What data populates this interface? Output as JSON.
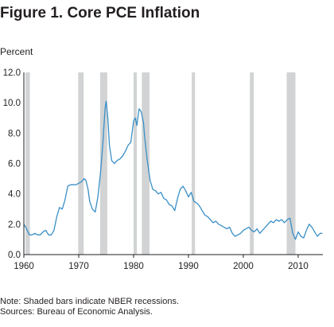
{
  "title": "Figure 1. Core PCE Inflation",
  "y_unit_label": "Percent",
  "notes": [
    "Note: Shaded bars indicate NBER recessions.",
    "Sources: Bureau of Economic Analysis."
  ],
  "colors": {
    "line": "#3a8fc7",
    "recession": "#d1d3d4",
    "axis": "#231f20",
    "text": "#231f20"
  },
  "chart_data": {
    "type": "line",
    "title": "Figure 1. Core PCE Inflation",
    "ylabel": "Percent",
    "xlabel": "",
    "xlim": [
      1960,
      2014.5
    ],
    "ylim": [
      0,
      12
    ],
    "x_ticks": [
      "1960",
      "1970",
      "1980",
      "1990",
      "2000",
      "2010"
    ],
    "y_ticks": [
      "0.0",
      "2.0",
      "4.0",
      "6.0",
      "8.0",
      "10.0",
      "12.0"
    ],
    "grid": false,
    "recessions": [
      [
        1960.3,
        1961.1
      ],
      [
        1969.9,
        1970.9
      ],
      [
        1973.9,
        1975.2
      ],
      [
        1980.0,
        1980.6
      ],
      [
        1981.5,
        1982.9
      ],
      [
        1990.6,
        1991.2
      ],
      [
        2001.2,
        2001.9
      ],
      [
        2007.9,
        2009.5
      ]
    ],
    "series": [
      {
        "name": "",
        "x": [
          1960.0,
          1960.5,
          1961.0,
          1961.5,
          1962.0,
          1962.5,
          1963.0,
          1963.5,
          1964.0,
          1964.5,
          1965.0,
          1965.5,
          1966.0,
          1966.5,
          1967.0,
          1967.5,
          1968.0,
          1968.5,
          1969.0,
          1969.5,
          1970.0,
          1970.5,
          1971.0,
          1971.3,
          1971.7,
          1972.0,
          1972.5,
          1973.0,
          1973.5,
          1974.0,
          1974.4,
          1974.8,
          1975.0,
          1975.3,
          1975.6,
          1976.0,
          1976.5,
          1977.0,
          1977.5,
          1978.0,
          1978.5,
          1979.0,
          1979.5,
          1980.0,
          1980.3,
          1980.6,
          1981.0,
          1981.4,
          1981.8,
          1982.0,
          1982.5,
          1983.0,
          1983.5,
          1984.0,
          1984.5,
          1985.0,
          1985.5,
          1986.0,
          1986.5,
          1987.0,
          1987.5,
          1988.0,
          1988.5,
          1989.0,
          1989.5,
          1990.0,
          1990.5,
          1991.0,
          1991.5,
          1992.0,
          1992.5,
          1993.0,
          1993.5,
          1994.0,
          1994.5,
          1995.0,
          1995.5,
          1996.0,
          1996.5,
          1997.0,
          1997.5,
          1998.0,
          1998.5,
          1999.0,
          1999.5,
          2000.0,
          2000.5,
          2001.0,
          2001.5,
          2002.0,
          2002.5,
          2003.0,
          2003.5,
          2004.0,
          2004.5,
          2005.0,
          2005.5,
          2006.0,
          2006.5,
          2007.0,
          2007.5,
          2008.0,
          2008.5,
          2009.0,
          2009.5,
          2010.0,
          2010.5,
          2011.0,
          2011.5,
          2012.0,
          2012.5,
          2013.0,
          2013.5,
          2014.0,
          2014.4
        ],
        "y": [
          2.0,
          1.7,
          1.3,
          1.3,
          1.4,
          1.3,
          1.3,
          1.5,
          1.6,
          1.3,
          1.3,
          1.6,
          2.5,
          3.1,
          3.0,
          3.6,
          4.5,
          4.6,
          4.6,
          4.6,
          4.7,
          4.8,
          5.0,
          4.9,
          4.3,
          3.5,
          3.0,
          2.8,
          3.8,
          5.5,
          7.3,
          9.6,
          10.1,
          9.0,
          7.2,
          6.2,
          6.0,
          6.2,
          6.3,
          6.5,
          6.8,
          7.2,
          7.4,
          8.8,
          9.0,
          8.5,
          9.6,
          9.4,
          8.7,
          7.8,
          6.2,
          4.9,
          4.3,
          4.2,
          4.0,
          4.1,
          3.7,
          3.6,
          3.3,
          3.2,
          2.9,
          3.7,
          4.3,
          4.5,
          4.2,
          3.8,
          4.1,
          3.5,
          3.4,
          3.2,
          2.9,
          2.6,
          2.5,
          2.3,
          2.1,
          2.2,
          2.0,
          1.9,
          1.8,
          1.7,
          1.8,
          1.4,
          1.2,
          1.3,
          1.4,
          1.6,
          1.7,
          1.8,
          1.6,
          1.5,
          1.7,
          1.4,
          1.6,
          1.8,
          2.0,
          2.2,
          2.1,
          2.3,
          2.2,
          2.3,
          2.1,
          2.3,
          2.4,
          1.4,
          1.0,
          1.5,
          1.2,
          1.1,
          1.6,
          2.0,
          1.8,
          1.5,
          1.2,
          1.4,
          1.4
        ]
      }
    ]
  }
}
